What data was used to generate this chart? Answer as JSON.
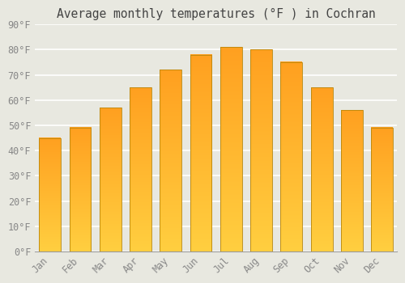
{
  "title": "Average monthly temperatures (°F ) in Cochran",
  "months": [
    "Jan",
    "Feb",
    "Mar",
    "Apr",
    "May",
    "Jun",
    "Jul",
    "Aug",
    "Sep",
    "Oct",
    "Nov",
    "Dec"
  ],
  "values": [
    45,
    49,
    57,
    65,
    72,
    78,
    81,
    80,
    75,
    65,
    56,
    49
  ],
  "ylim": [
    0,
    90
  ],
  "yticks": [
    0,
    10,
    20,
    30,
    40,
    50,
    60,
    70,
    80,
    90
  ],
  "ytick_labels": [
    "0°F",
    "10°F",
    "20°F",
    "30°F",
    "40°F",
    "50°F",
    "60°F",
    "70°F",
    "80°F",
    "90°F"
  ],
  "background_color": "#e8e8e0",
  "grid_color": "#ffffff",
  "title_fontsize": 10.5,
  "tick_fontsize": 8.5,
  "bar_color_bottom": "#FFCF40",
  "bar_color_top": "#FFA020",
  "bar_edge_color": "#b8860b",
  "bar_width": 0.72
}
